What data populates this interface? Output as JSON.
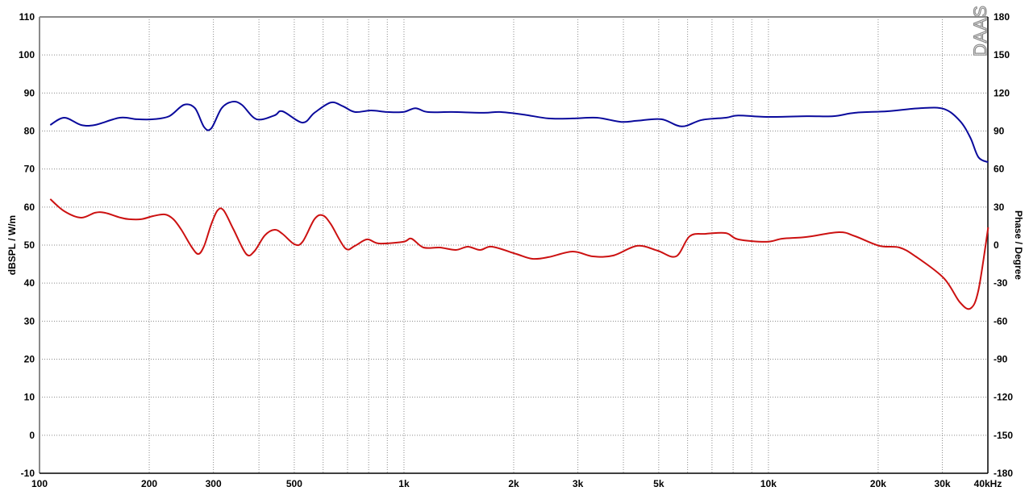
{
  "chart_data": {
    "type": "line",
    "xlabel_unit": "kHz",
    "ylabel_left": "dBSPL / W/m",
    "ylabel_right": "Phase / Degree",
    "logo": "DAAS",
    "x_scale": "log",
    "xlim": [
      100,
      40000
    ],
    "ylim_left": [
      -10,
      110
    ],
    "ylim_right": [
      -180,
      180
    ],
    "grid": true,
    "x_ticks": [
      {
        "v": 100,
        "label": "100"
      },
      {
        "v": 200,
        "label": "200"
      },
      {
        "v": 300,
        "label": "300"
      },
      {
        "v": 500,
        "label": "500"
      },
      {
        "v": 1000,
        "label": "1k"
      },
      {
        "v": 2000,
        "label": "2k"
      },
      {
        "v": 3000,
        "label": "3k"
      },
      {
        "v": 5000,
        "label": "5k"
      },
      {
        "v": 10000,
        "label": "10k"
      },
      {
        "v": 20000,
        "label": "20k"
      },
      {
        "v": 30000,
        "label": "30k"
      },
      {
        "v": 40000,
        "label": "40kHz"
      }
    ],
    "y_ticks_left": [
      110,
      100,
      90,
      80,
      70,
      60,
      50,
      40,
      30,
      20,
      10,
      0,
      -10
    ],
    "y_ticks_right": [
      180,
      150,
      120,
      90,
      60,
      30,
      0,
      -30,
      -60,
      -90,
      -120,
      -150,
      -180
    ],
    "colors": {
      "spl": "#0a0a9c",
      "phase": "#cc1111"
    },
    "series": [
      {
        "axis": "left",
        "color": "#0a0a9c",
        "x": [
          107,
          117,
          130,
          142,
          166,
          185,
          205,
          227,
          249,
          267,
          283,
          296,
          316,
          338,
          359,
          394,
          441,
          464,
          527,
          568,
          630,
          680,
          733,
          812,
          899,
          996,
          1075,
          1160,
          1352,
          1658,
          1835,
          2138,
          2493,
          2904,
          3385,
          3945,
          4365,
          5088,
          5780,
          6565,
          7648,
          8257,
          9870,
          12730,
          15070,
          17290,
          21200,
          26000,
          30270,
          33500,
          35830,
          37680,
          40080
        ],
        "values": [
          81.6,
          83.5,
          81.6,
          81.6,
          83.5,
          83.1,
          83.1,
          83.9,
          86.9,
          86,
          81,
          80.7,
          86,
          87.7,
          86.9,
          83.1,
          84.1,
          85.2,
          82.2,
          84.8,
          87.5,
          86.5,
          85,
          85.4,
          85,
          85,
          86,
          85,
          85,
          84.8,
          85,
          84.3,
          83.3,
          83.3,
          83.5,
          82.4,
          82.7,
          83.1,
          81.2,
          82.9,
          83.5,
          84.1,
          83.7,
          83.9,
          83.9,
          84.8,
          85.2,
          86,
          85.8,
          82.7,
          78.2,
          73.1,
          71.8
        ]
      },
      {
        "axis": "right",
        "color": "#cc1111",
        "x": [
          107,
          117,
          130,
          142,
          151,
          167,
          176,
          190,
          205,
          221,
          233,
          245,
          262,
          273,
          283,
          296,
          308,
          320,
          341,
          369,
          388,
          415,
          441,
          464,
          501,
          527,
          568,
          598,
          630,
          690,
          733,
          792,
          855,
          996,
          1048,
          1131,
          1253,
          1387,
          1497,
          1616,
          1745,
          2033,
          2251,
          2493,
          2904,
          3299,
          3747,
          4365,
          4961,
          5577,
          6082,
          6733,
          7648,
          8257,
          9870,
          10930,
          12730,
          15610,
          17290,
          20140,
          22870,
          25330,
          30270,
          33500,
          35830,
          37680,
          40080
        ],
        "values": [
          36.3,
          26.7,
          21.6,
          25.5,
          25.5,
          21.6,
          20.4,
          20.4,
          22.9,
          24.2,
          20.4,
          12.1,
          -1.9,
          -7,
          -0.6,
          16.5,
          27.4,
          27.4,
          12.1,
          -7,
          -5.1,
          7.6,
          12.1,
          8.9,
          0.6,
          2.6,
          20.4,
          23.5,
          16.5,
          -2.5,
          -0.6,
          4.5,
          1.3,
          2.6,
          5.1,
          -1.9,
          -1.9,
          -3.8,
          -1.3,
          -3.8,
          -1.3,
          -7,
          -10.8,
          -9.5,
          -5.1,
          -8.9,
          -8.3,
          -0.6,
          -4.4,
          -8.9,
          7,
          8.9,
          9.5,
          4.5,
          2.6,
          5.1,
          6.4,
          10.2,
          7,
          -0.6,
          -1.9,
          -8.9,
          -26,
          -45,
          -50,
          -35.6,
          14
        ]
      }
    ]
  }
}
